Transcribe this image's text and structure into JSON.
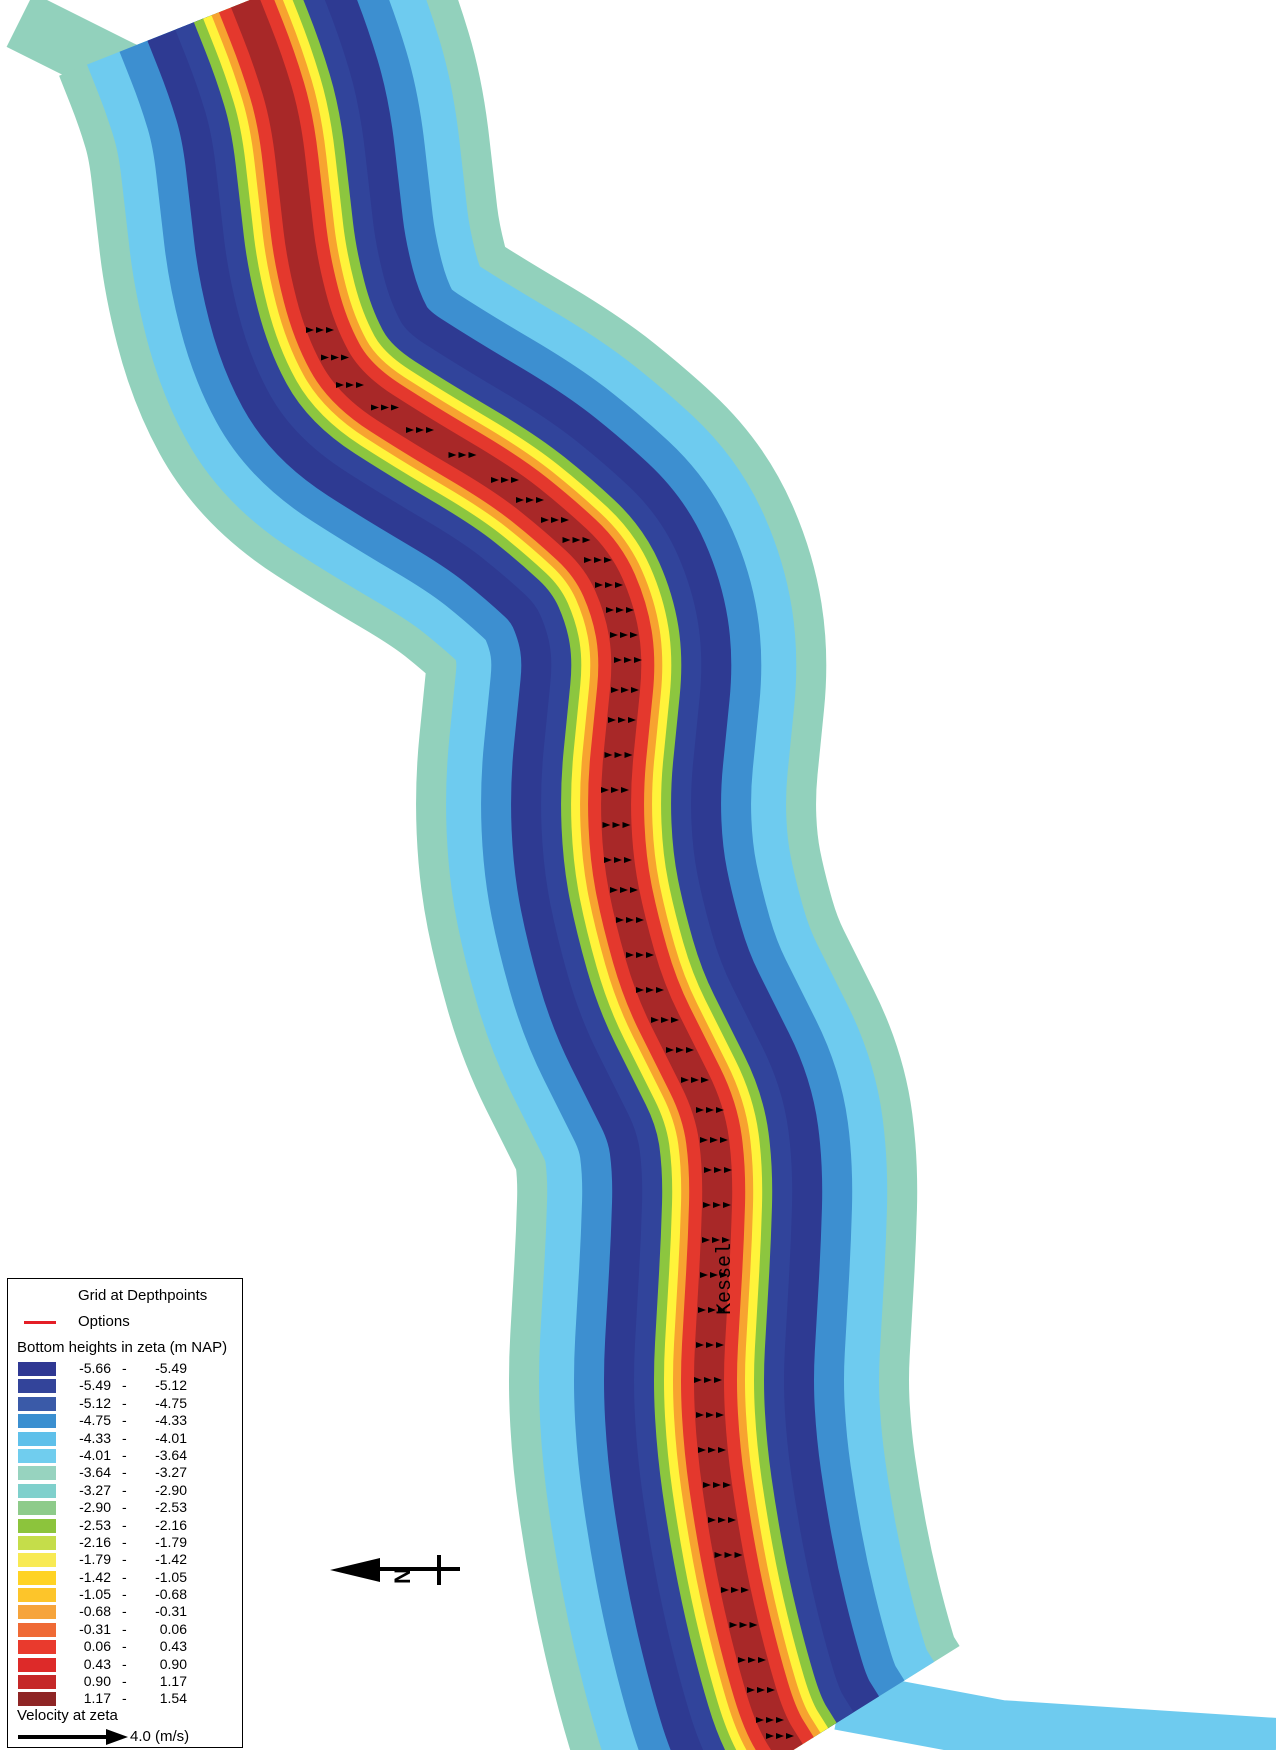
{
  "map": {
    "location_label": "Kessel",
    "north_label": "N",
    "colors": {
      "outer_bank": "#92d1bc",
      "outer_light": "#6ecbef",
      "mid_blue": "#3d8fd0",
      "deep_blue": "#31449b",
      "darker_blue": "#2e3a92",
      "green": "#8cc63f",
      "yellow": "#fff33a",
      "orange": "#f7a330",
      "red": "#e4382d",
      "dark_red": "#a82828",
      "vector": "#000000"
    }
  },
  "legend": {
    "grid_label": "Grid at Depthpoints",
    "options_label": "Options",
    "bottom_title": "Bottom heights in zeta (m NAP)",
    "classes": [
      {
        "lo": "-5.66",
        "hi": "-5.49",
        "color": "#2f3893"
      },
      {
        "lo": "-5.49",
        "hi": "-5.12",
        "color": "#33449a"
      },
      {
        "lo": "-5.12",
        "hi": "-4.75",
        "color": "#3a5aa8"
      },
      {
        "lo": "-4.75",
        "hi": "-4.33",
        "color": "#3b8fd0"
      },
      {
        "lo": "-4.33",
        "hi": "-4.01",
        "color": "#5fc0ea"
      },
      {
        "lo": "-4.01",
        "hi": "-3.64",
        "color": "#70cdee"
      },
      {
        "lo": "-3.64",
        "hi": "-3.27",
        "color": "#97d3bf"
      },
      {
        "lo": "-3.27",
        "hi": "-2.90",
        "color": "#7fd0cc"
      },
      {
        "lo": "-2.90",
        "hi": "-2.53",
        "color": "#8ecb8a"
      },
      {
        "lo": "-2.53",
        "hi": "-2.16",
        "color": "#8cc43c"
      },
      {
        "lo": "-2.16",
        "hi": "-1.79",
        "color": "#c5dd4a"
      },
      {
        "lo": "-1.79",
        "hi": "-1.42",
        "color": "#f8ea53"
      },
      {
        "lo": "-1.42",
        "hi": "-1.05",
        "color": "#ffd324"
      },
      {
        "lo": "-1.05",
        "hi": "-0.68",
        "color": "#fdc52a"
      },
      {
        "lo": "-0.68",
        "hi": "-0.31",
        "color": "#f6a43b"
      },
      {
        "lo": "-0.31",
        "hi": "0.06",
        "color": "#ef6a35"
      },
      {
        "lo": "0.06",
        "hi": "0.43",
        "color": "#e93a2d"
      },
      {
        "lo": "0.43",
        "hi": "0.90",
        "color": "#dd2a29"
      },
      {
        "lo": "0.90",
        "hi": "1.17",
        "color": "#c52828"
      },
      {
        "lo": "1.17",
        "hi": "1.54",
        "color": "#8e2525"
      }
    ],
    "velocity_title": "Velocity at zeta",
    "velocity_label": "4.0 (m/s)"
  }
}
